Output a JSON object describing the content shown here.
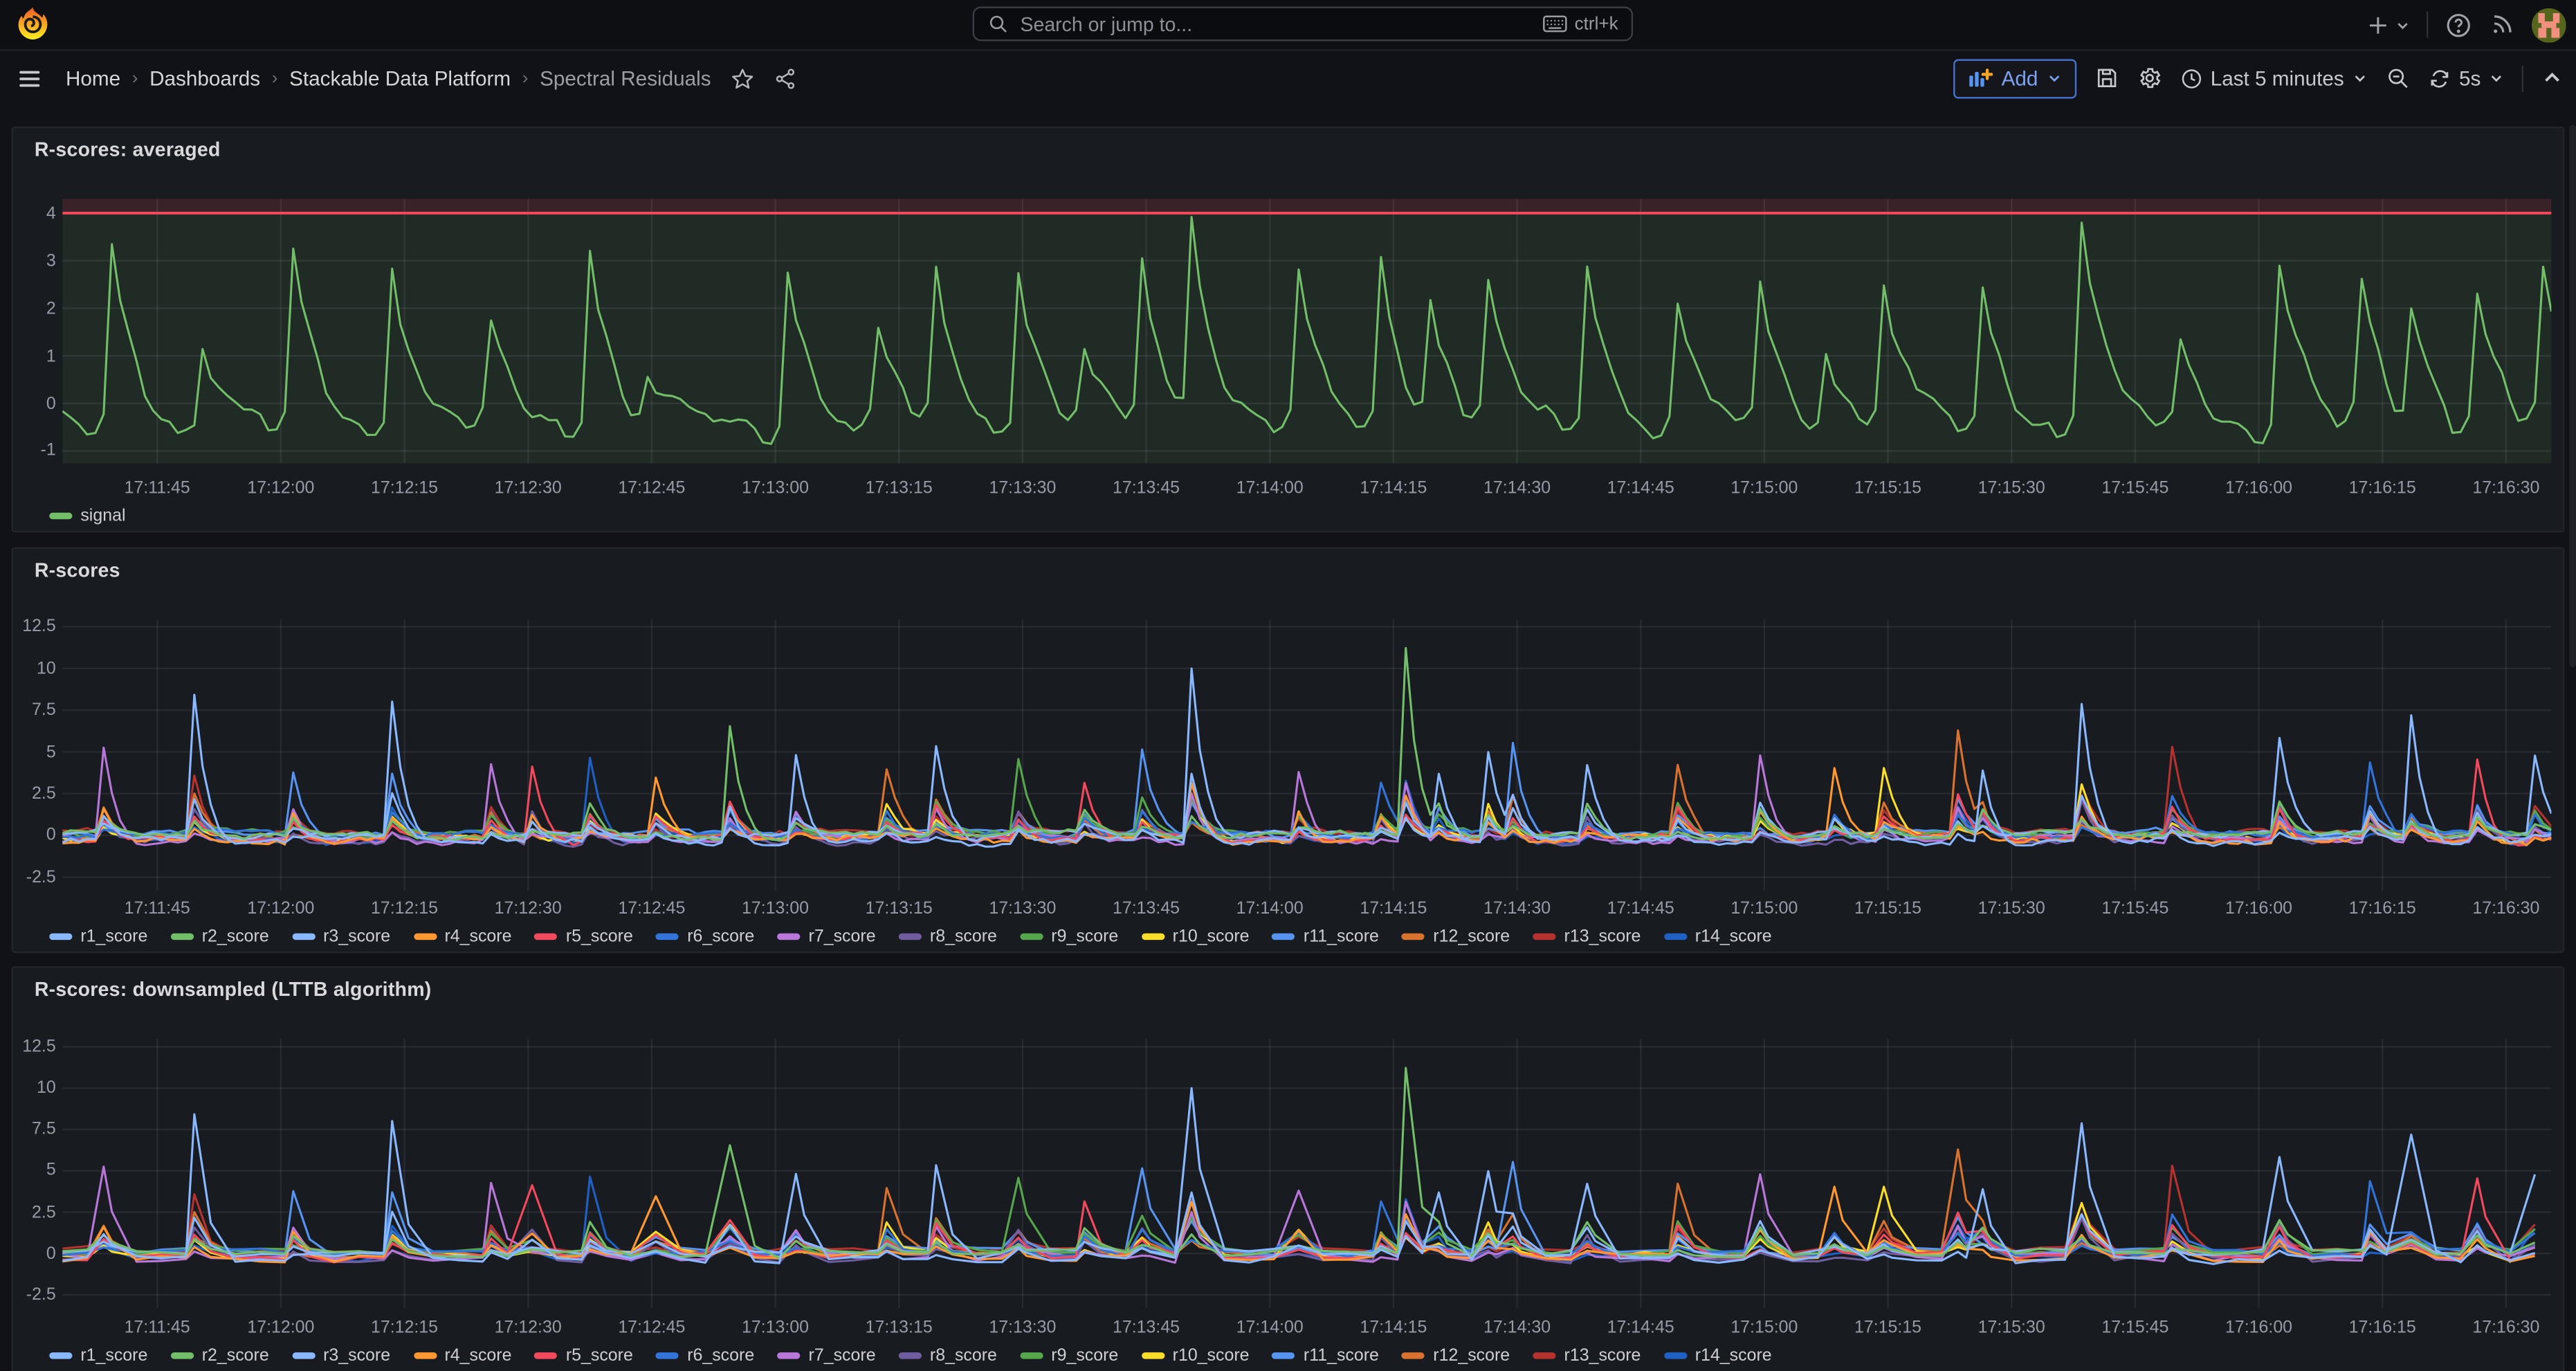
{
  "topbar": {
    "search": {
      "placeholder": "Search or jump to...",
      "shortcut": "ctrl+k"
    },
    "right_icons": [
      "plus-menu",
      "help",
      "news",
      "avatar"
    ]
  },
  "breadcrumb": {
    "items": [
      {
        "label": "Home"
      },
      {
        "label": "Dashboards"
      },
      {
        "label": "Stackable Data Platform"
      },
      {
        "label": "Spectral Residuals"
      }
    ]
  },
  "controls": {
    "add_label": "Add",
    "time_range": "Last 5 minutes",
    "refresh_interval": "5s"
  },
  "panels": [
    {
      "title": "R-scores: averaged"
    },
    {
      "title": "R-scores"
    },
    {
      "title": "R-scores: downsampled (LTTB algorithm)"
    }
  ],
  "colors": {
    "canvas": "#111217",
    "panel": "#181b1f",
    "accent_blue": "#5794F2",
    "threshold_red": "#F2495C",
    "signal_green": "#73BF69",
    "grid": "rgba(204,204,220,0.09)"
  },
  "chart_data": [
    {
      "panel": "r-scores-averaged",
      "type": "line",
      "title": "R-scores: averaged",
      "ylim": [
        -1.26,
        4.3
      ],
      "yticks": [
        4,
        3,
        2,
        1,
        0,
        -1
      ],
      "x_tick_labels": [
        "17:11:45",
        "17:12:00",
        "17:12:15",
        "17:12:30",
        "17:12:45",
        "17:13:00",
        "17:13:15",
        "17:13:30",
        "17:13:45",
        "17:14:00",
        "17:14:15",
        "17:14:30",
        "17:14:45",
        "17:15:00",
        "17:15:15",
        "17:15:30",
        "17:15:45",
        "17:16:00",
        "17:16:15",
        "17:16:30"
      ],
      "time_span_s": 302,
      "first_tick_offset_s": 11.5,
      "tick_interval_s": 15,
      "threshold": {
        "value": 4,
        "color": "#F2495C"
      },
      "series": [
        {
          "name": "signal",
          "color": "#73BF69"
        }
      ],
      "baseline": -0.45,
      "spikes": [
        {
          "t": 6,
          "h": 3.25
        },
        {
          "t": 17,
          "h": 1.2
        },
        {
          "t": 28,
          "h": 3.0
        },
        {
          "t": 40,
          "h": 2.95
        },
        {
          "t": 52,
          "h": 1.5
        },
        {
          "t": 64,
          "h": 3.35
        },
        {
          "t": 71,
          "h": 0.4
        },
        {
          "t": 88,
          "h": 2.9
        },
        {
          "t": 99,
          "h": 1.35
        },
        {
          "t": 106,
          "h": 2.55
        },
        {
          "t": 116,
          "h": 2.9
        },
        {
          "t": 124,
          "h": 0.9
        },
        {
          "t": 131,
          "h": 2.9
        },
        {
          "t": 137,
          "h": 3.75
        },
        {
          "t": 150,
          "h": 2.5
        },
        {
          "t": 160,
          "h": 3.0
        },
        {
          "t": 166,
          "h": 1.9
        },
        {
          "t": 173,
          "h": 2.2
        },
        {
          "t": 185,
          "h": 3.0
        },
        {
          "t": 196,
          "h": 1.95
        },
        {
          "t": 206,
          "h": 2.45
        },
        {
          "t": 214,
          "h": 1.1
        },
        {
          "t": 221,
          "h": 2.4
        },
        {
          "t": 233,
          "h": 2.3
        },
        {
          "t": 245,
          "h": 3.9
        },
        {
          "t": 257,
          "h": 1.2
        },
        {
          "t": 269,
          "h": 3.0
        },
        {
          "t": 279,
          "h": 2.3
        },
        {
          "t": 285,
          "h": 1.9
        },
        {
          "t": 293,
          "h": 2.2
        },
        {
          "t": 301,
          "h": 2.6
        }
      ]
    },
    {
      "panel": "r-scores",
      "type": "line",
      "title": "R-scores",
      "ylim": [
        -3.31,
        12.93
      ],
      "yticks": [
        12.5,
        10,
        7.5,
        5,
        2.5,
        0,
        -2.5
      ],
      "x_tick_labels": [
        "17:11:45",
        "17:12:00",
        "17:12:15",
        "17:12:30",
        "17:12:45",
        "17:13:00",
        "17:13:15",
        "17:13:30",
        "17:13:45",
        "17:14:00",
        "17:14:15",
        "17:14:30",
        "17:14:45",
        "17:15:00",
        "17:15:15",
        "17:15:30",
        "17:15:45",
        "17:16:00",
        "17:16:15",
        "17:16:30"
      ],
      "time_span_s": 302,
      "first_tick_offset_s": 11.5,
      "tick_interval_s": 15,
      "sample_step_s": 1,
      "series": [
        {
          "name": "r1_score",
          "color": "#8AB8FF"
        },
        {
          "name": "r2_score",
          "color": "#73BF69"
        },
        {
          "name": "r3_score",
          "color": "#8AB8FF"
        },
        {
          "name": "r4_score",
          "color": "#FF9830"
        },
        {
          "name": "r5_score",
          "color": "#F2495C"
        },
        {
          "name": "r6_score",
          "color": "#3274D9"
        },
        {
          "name": "r7_score",
          "color": "#B877D9"
        },
        {
          "name": "r8_score",
          "color": "#705DA0"
        },
        {
          "name": "r9_score",
          "color": "#56A64B"
        },
        {
          "name": "r10_score",
          "color": "#FADE2A"
        },
        {
          "name": "r11_score",
          "color": "#5794F2"
        },
        {
          "name": "r12_score",
          "color": "#D9722E"
        },
        {
          "name": "r13_score",
          "color": "#B5322F"
        },
        {
          "name": "r14_score",
          "color": "#1F60C4"
        }
      ],
      "events": [
        {
          "t": 5,
          "h": 5.7,
          "lead": 6
        },
        {
          "t": 16,
          "h": 8.7,
          "lead": 0
        },
        {
          "t": 28,
          "h": 4.0,
          "lead": 10
        },
        {
          "t": 40,
          "h": 8.2,
          "lead": 2
        },
        {
          "t": 52,
          "h": 4.6,
          "lead": 6
        },
        {
          "t": 57,
          "h": 4.5,
          "lead": 4
        },
        {
          "t": 64,
          "h": 5.0,
          "lead": 13
        },
        {
          "t": 72,
          "h": 3.5,
          "lead": 3
        },
        {
          "t": 81,
          "h": 6.8,
          "lead": 1
        },
        {
          "t": 89,
          "h": 5.2,
          "lead": 0
        },
        {
          "t": 100,
          "h": 4.0,
          "lead": 11
        },
        {
          "t": 106,
          "h": 5.5,
          "lead": 2
        },
        {
          "t": 116,
          "h": 4.5,
          "lead": 8
        },
        {
          "t": 124,
          "h": 3.5,
          "lead": 4
        },
        {
          "t": 131,
          "h": 5.0,
          "lead": 10
        },
        {
          "t": 137,
          "h": 10.2,
          "lead": 2
        },
        {
          "t": 150,
          "h": 4.2,
          "lead": 6
        },
        {
          "t": 160,
          "h": 3.2,
          "lead": 5
        },
        {
          "t": 163,
          "h": 11.3,
          "lead": 1
        },
        {
          "t": 167,
          "h": 4.0,
          "lead": 0
        },
        {
          "t": 173,
          "h": 5.2,
          "lead": 2
        },
        {
          "t": 176,
          "h": 5.6,
          "lead": 10
        },
        {
          "t": 185,
          "h": 4.5,
          "lead": 0
        },
        {
          "t": 196,
          "h": 4.2,
          "lead": 11
        },
        {
          "t": 206,
          "h": 5.0,
          "lead": 6
        },
        {
          "t": 215,
          "h": 4.3,
          "lead": 3
        },
        {
          "t": 221,
          "h": 4.1,
          "lead": 9
        },
        {
          "t": 230,
          "h": 6.3,
          "lead": 11
        },
        {
          "t": 233,
          "h": 4.5,
          "lead": 0
        },
        {
          "t": 245,
          "h": 8.3,
          "lead": 0
        },
        {
          "t": 256,
          "h": 5.3,
          "lead": 12
        },
        {
          "t": 269,
          "h": 5.8,
          "lead": 2
        },
        {
          "t": 280,
          "h": 4.5,
          "lead": 5
        },
        {
          "t": 285,
          "h": 7.5,
          "lead": 0
        },
        {
          "t": 293,
          "h": 4.8,
          "lead": 4
        },
        {
          "t": 300,
          "h": 4.7,
          "lead": 2
        }
      ]
    },
    {
      "panel": "r-scores-downsampled-lttb",
      "type": "line",
      "title": "R-scores: downsampled (LTTB algorithm)",
      "ylim": [
        -3.3,
        13.0
      ],
      "yticks": [
        12.5,
        10,
        7.5,
        5,
        2.5,
        0,
        -2.5
      ],
      "x_tick_labels": [
        "17:11:45",
        "17:12:00",
        "17:12:15",
        "17:12:30",
        "17:12:45",
        "17:13:00",
        "17:13:15",
        "17:13:30",
        "17:13:45",
        "17:14:00",
        "17:14:15",
        "17:14:30",
        "17:14:45",
        "17:15:00",
        "17:15:15",
        "17:15:30",
        "17:15:45",
        "17:16:00",
        "17:16:15",
        "17:16:30"
      ],
      "time_span_s": 302,
      "first_tick_offset_s": 11.5,
      "tick_interval_s": 15,
      "sample_step_s": 3,
      "series": [
        {
          "name": "r1_score",
          "color": "#8AB8FF"
        },
        {
          "name": "r2_score",
          "color": "#73BF69"
        },
        {
          "name": "r3_score",
          "color": "#8AB8FF"
        },
        {
          "name": "r4_score",
          "color": "#FF9830"
        },
        {
          "name": "r5_score",
          "color": "#F2495C"
        },
        {
          "name": "r6_score",
          "color": "#3274D9"
        },
        {
          "name": "r7_score",
          "color": "#B877D9"
        },
        {
          "name": "r8_score",
          "color": "#705DA0"
        },
        {
          "name": "r9_score",
          "color": "#56A64B"
        },
        {
          "name": "r10_score",
          "color": "#FADE2A"
        },
        {
          "name": "r11_score",
          "color": "#5794F2"
        },
        {
          "name": "r12_score",
          "color": "#D9722E"
        },
        {
          "name": "r13_score",
          "color": "#B5322F"
        },
        {
          "name": "r14_score",
          "color": "#1F60C4"
        }
      ],
      "events": [
        {
          "t": 5,
          "h": 5.7,
          "lead": 6
        },
        {
          "t": 16,
          "h": 8.7,
          "lead": 0
        },
        {
          "t": 28,
          "h": 4.0,
          "lead": 10
        },
        {
          "t": 40,
          "h": 8.2,
          "lead": 2
        },
        {
          "t": 52,
          "h": 4.6,
          "lead": 6
        },
        {
          "t": 57,
          "h": 4.5,
          "lead": 4
        },
        {
          "t": 64,
          "h": 5.0,
          "lead": 13
        },
        {
          "t": 72,
          "h": 3.5,
          "lead": 3
        },
        {
          "t": 81,
          "h": 6.8,
          "lead": 1
        },
        {
          "t": 89,
          "h": 5.2,
          "lead": 0
        },
        {
          "t": 100,
          "h": 4.0,
          "lead": 11
        },
        {
          "t": 106,
          "h": 5.5,
          "lead": 2
        },
        {
          "t": 116,
          "h": 4.5,
          "lead": 8
        },
        {
          "t": 124,
          "h": 3.5,
          "lead": 4
        },
        {
          "t": 131,
          "h": 5.0,
          "lead": 10
        },
        {
          "t": 137,
          "h": 10.2,
          "lead": 2
        },
        {
          "t": 150,
          "h": 4.2,
          "lead": 6
        },
        {
          "t": 160,
          "h": 3.2,
          "lead": 5
        },
        {
          "t": 163,
          "h": 11.3,
          "lead": 1
        },
        {
          "t": 167,
          "h": 4.0,
          "lead": 0
        },
        {
          "t": 173,
          "h": 5.2,
          "lead": 2
        },
        {
          "t": 176,
          "h": 5.6,
          "lead": 10
        },
        {
          "t": 185,
          "h": 4.5,
          "lead": 0
        },
        {
          "t": 196,
          "h": 4.2,
          "lead": 11
        },
        {
          "t": 206,
          "h": 5.0,
          "lead": 6
        },
        {
          "t": 215,
          "h": 4.3,
          "lead": 3
        },
        {
          "t": 221,
          "h": 4.1,
          "lead": 9
        },
        {
          "t": 230,
          "h": 6.3,
          "lead": 11
        },
        {
          "t": 233,
          "h": 4.5,
          "lead": 0
        },
        {
          "t": 245,
          "h": 8.3,
          "lead": 0
        },
        {
          "t": 256,
          "h": 5.3,
          "lead": 12
        },
        {
          "t": 269,
          "h": 5.8,
          "lead": 2
        },
        {
          "t": 280,
          "h": 4.5,
          "lead": 5
        },
        {
          "t": 285,
          "h": 7.5,
          "lead": 0
        },
        {
          "t": 293,
          "h": 4.8,
          "lead": 4
        },
        {
          "t": 300,
          "h": 4.7,
          "lead": 2
        }
      ]
    }
  ]
}
